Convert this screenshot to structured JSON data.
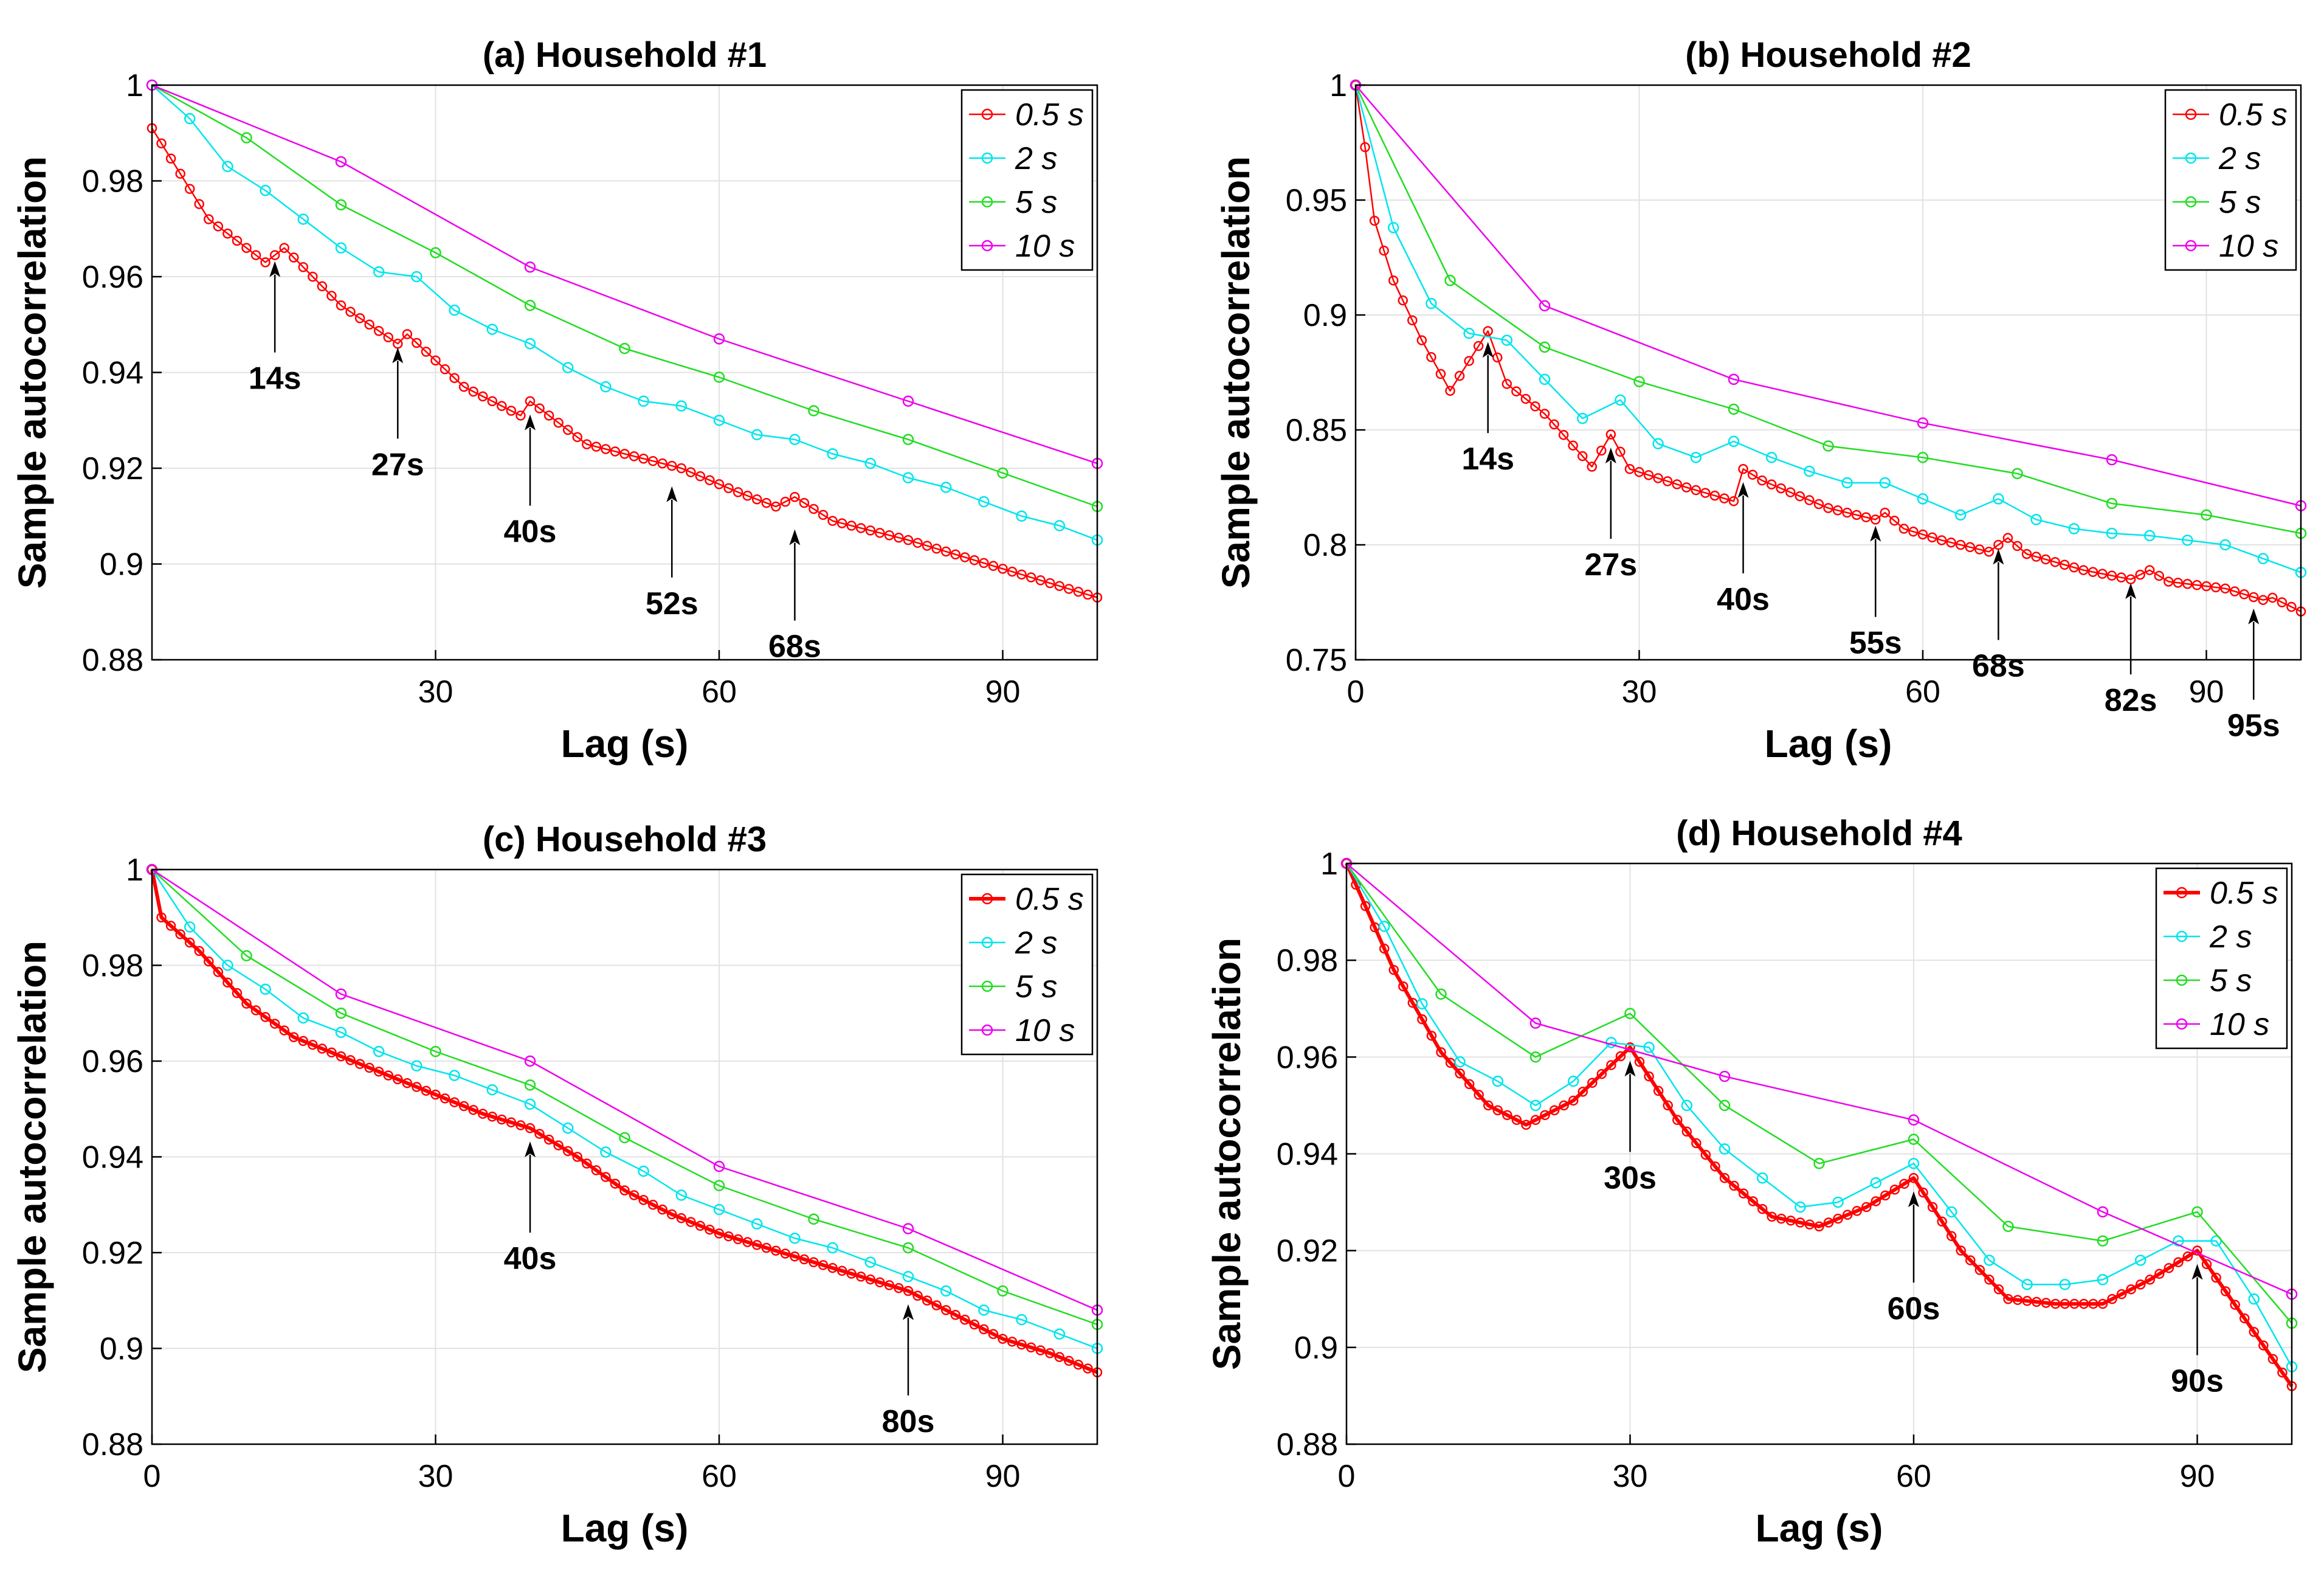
{
  "chart_data": [
    {
      "type": "line",
      "title": "(a) Household #1",
      "xlabel": "Lag (s)",
      "ylabel": "Sample autocorrelation",
      "xlim": [
        0,
        100
      ],
      "ylim": [
        0.88,
        1
      ],
      "xticks": [
        30,
        60,
        90
      ],
      "xtick_labels": [
        "30",
        "60",
        "90"
      ],
      "yticks": [
        0.88,
        0.9,
        0.92,
        0.94,
        0.96,
        0.98,
        1
      ],
      "ytick_labels": [
        "0.88",
        "0.9",
        "0.92",
        "0.94",
        "0.96",
        "0.98",
        "1"
      ],
      "grid": true,
      "legend_position": "top-right",
      "series": [
        {
          "name": "0.5 s",
          "color": "#ff0000",
          "thick": false,
          "step": 1,
          "key_x": [
            0,
            6,
            12,
            14,
            20,
            26,
            27,
            33,
            39,
            40,
            46,
            52,
            56,
            62,
            66,
            68,
            72,
            80,
            90,
            100
          ],
          "key_y": [
            0.991,
            0.972,
            0.963,
            0.966,
            0.954,
            0.946,
            0.948,
            0.937,
            0.931,
            0.934,
            0.925,
            0.922,
            0.92,
            0.915,
            0.912,
            0.914,
            0.909,
            0.905,
            0.899,
            0.893
          ]
        },
        {
          "name": "2 s",
          "color": "#00e5ee",
          "thick": false,
          "step": 4,
          "key_x": [
            0,
            4,
            8,
            12,
            16,
            20,
            24,
            28,
            32,
            36,
            40,
            44,
            48,
            52,
            56,
            60,
            64,
            68,
            72,
            76,
            80,
            84,
            88,
            92,
            96,
            100
          ],
          "key_y": [
            1,
            0.993,
            0.983,
            0.978,
            0.972,
            0.966,
            0.961,
            0.96,
            0.953,
            0.949,
            0.946,
            0.941,
            0.937,
            0.934,
            0.933,
            0.93,
            0.927,
            0.926,
            0.923,
            0.921,
            0.918,
            0.916,
            0.913,
            0.91,
            0.908,
            0.905
          ]
        },
        {
          "name": "5 s",
          "color": "#22dd22",
          "thick": false,
          "step": 10,
          "key_x": [
            0,
            10,
            20,
            30,
            40,
            50,
            60,
            70,
            80,
            90,
            100
          ],
          "key_y": [
            1,
            0.989,
            0.975,
            0.965,
            0.954,
            0.945,
            0.939,
            0.932,
            0.926,
            0.919,
            0.912
          ]
        },
        {
          "name": "10 s",
          "color": "#ee00ee",
          "thick": false,
          "step": 20,
          "key_x": [
            0,
            20,
            40,
            60,
            80,
            100
          ],
          "key_y": [
            1,
            0.984,
            0.962,
            0.947,
            0.934,
            0.921
          ]
        }
      ],
      "annotations": [
        {
          "label": "14s",
          "x": 13,
          "y": 0.965
        },
        {
          "label": "27s",
          "x": 26,
          "y": 0.947
        },
        {
          "label": "40s",
          "x": 40,
          "y": 0.933
        },
        {
          "label": "52s",
          "x": 55,
          "y": 0.918
        },
        {
          "label": "68s",
          "x": 68,
          "y": 0.909
        }
      ]
    },
    {
      "type": "line",
      "title": "(b) Household #2",
      "xlabel": "Lag (s)",
      "ylabel": "Sample autocorrelation",
      "xlim": [
        0,
        100
      ],
      "ylim": [
        0.75,
        1
      ],
      "xticks": [
        0,
        30,
        60,
        90
      ],
      "xtick_labels": [
        "0",
        "30",
        "60",
        "90"
      ],
      "yticks": [
        0.75,
        0.8,
        0.85,
        0.9,
        0.95,
        1
      ],
      "ytick_labels": [
        "0.75",
        "0.8",
        "0.85",
        "0.9",
        "0.95",
        "1"
      ],
      "grid": true,
      "legend_position": "top-right",
      "series": [
        {
          "name": "0.5 s",
          "color": "#ff0000",
          "thick": false,
          "step": 1,
          "key_x": [
            0,
            1,
            2,
            4,
            7,
            10,
            12,
            14,
            16,
            20,
            25,
            27,
            29,
            35,
            40,
            41,
            43,
            50,
            55,
            56,
            58,
            62,
            67,
            69,
            71,
            77,
            82,
            84,
            86,
            92,
            96,
            97,
            100
          ],
          "key_y": [
            1,
            0.973,
            0.941,
            0.915,
            0.889,
            0.867,
            0.88,
            0.893,
            0.87,
            0.857,
            0.834,
            0.848,
            0.833,
            0.825,
            0.819,
            0.833,
            0.828,
            0.816,
            0.811,
            0.814,
            0.807,
            0.802,
            0.797,
            0.803,
            0.796,
            0.789,
            0.785,
            0.789,
            0.784,
            0.781,
            0.776,
            0.777,
            0.771
          ]
        },
        {
          "name": "2 s",
          "color": "#00e5ee",
          "thick": false,
          "step": 4,
          "key_x": [
            0,
            4,
            8,
            12,
            16,
            20,
            24,
            28,
            32,
            36,
            40,
            44,
            48,
            52,
            56,
            60,
            64,
            68,
            72,
            76,
            80,
            84,
            88,
            92,
            96,
            100
          ],
          "key_y": [
            1,
            0.938,
            0.905,
            0.892,
            0.889,
            0.872,
            0.855,
            0.863,
            0.844,
            0.838,
            0.845,
            0.838,
            0.832,
            0.827,
            0.827,
            0.82,
            0.813,
            0.82,
            0.811,
            0.807,
            0.805,
            0.804,
            0.802,
            0.8,
            0.794,
            0.788
          ]
        },
        {
          "name": "5 s",
          "color": "#22dd22",
          "thick": false,
          "step": 10,
          "key_x": [
            0,
            10,
            20,
            30,
            40,
            50,
            60,
            70,
            80,
            90,
            100
          ],
          "key_y": [
            1,
            0.915,
            0.886,
            0.871,
            0.859,
            0.843,
            0.838,
            0.831,
            0.818,
            0.813,
            0.805
          ]
        },
        {
          "name": "10 s",
          "color": "#ee00ee",
          "thick": false,
          "step": 20,
          "key_x": [
            0,
            20,
            40,
            60,
            80,
            100
          ],
          "key_y": [
            1,
            0.904,
            0.872,
            0.853,
            0.837,
            0.817
          ]
        }
      ],
      "annotations": [
        {
          "label": "14s",
          "x": 14,
          "y": 0.892
        },
        {
          "label": "27s",
          "x": 27,
          "y": 0.846
        },
        {
          "label": "40s",
          "x": 41,
          "y": 0.831
        },
        {
          "label": "55s",
          "x": 55,
          "y": 0.812
        },
        {
          "label": "68s",
          "x": 68,
          "y": 0.802
        },
        {
          "label": "82s",
          "x": 82,
          "y": 0.787
        },
        {
          "label": "95s",
          "x": 95,
          "y": 0.776
        }
      ]
    },
    {
      "type": "line",
      "title": "(c) Household #3",
      "xlabel": "Lag (s)",
      "ylabel": "Sample autocorrelation",
      "xlim": [
        0,
        100
      ],
      "ylim": [
        0.88,
        1
      ],
      "xticks": [
        0,
        30,
        60,
        90
      ],
      "xtick_labels": [
        "0",
        "30",
        "60",
        "90"
      ],
      "yticks": [
        0.88,
        0.9,
        0.92,
        0.94,
        0.96,
        0.98,
        1
      ],
      "ytick_labels": [
        "0.88",
        "0.9",
        "0.92",
        "0.94",
        "0.96",
        "0.98",
        "1"
      ],
      "grid": true,
      "legend_position": "top-right",
      "series": [
        {
          "name": "0.5 s",
          "color": "#ff0000",
          "thick": true,
          "step": 1,
          "key_x": [
            0,
            1,
            5,
            10,
            15,
            20,
            25,
            30,
            35,
            40,
            45,
            50,
            55,
            60,
            65,
            70,
            75,
            80,
            85,
            90,
            95,
            100
          ],
          "key_y": [
            1,
            0.99,
            0.983,
            0.972,
            0.965,
            0.961,
            0.957,
            0.953,
            0.949,
            0.946,
            0.94,
            0.933,
            0.928,
            0.924,
            0.921,
            0.918,
            0.915,
            0.912,
            0.907,
            0.902,
            0.899,
            0.895
          ]
        },
        {
          "name": "2 s",
          "color": "#00e5ee",
          "thick": false,
          "step": 4,
          "key_x": [
            0,
            4,
            8,
            12,
            16,
            20,
            24,
            28,
            32,
            36,
            40,
            44,
            48,
            52,
            56,
            60,
            64,
            68,
            72,
            76,
            80,
            84,
            88,
            92,
            96,
            100
          ],
          "key_y": [
            1,
            0.988,
            0.98,
            0.975,
            0.969,
            0.966,
            0.962,
            0.959,
            0.957,
            0.954,
            0.951,
            0.946,
            0.941,
            0.937,
            0.932,
            0.929,
            0.926,
            0.923,
            0.921,
            0.918,
            0.915,
            0.912,
            0.908,
            0.906,
            0.903,
            0.9
          ]
        },
        {
          "name": "5 s",
          "color": "#22dd22",
          "thick": false,
          "step": 10,
          "key_x": [
            0,
            10,
            20,
            30,
            40,
            50,
            60,
            70,
            80,
            90,
            100
          ],
          "key_y": [
            1,
            0.982,
            0.97,
            0.962,
            0.955,
            0.944,
            0.934,
            0.927,
            0.921,
            0.912,
            0.905
          ]
        },
        {
          "name": "10 s",
          "color": "#ee00ee",
          "thick": false,
          "step": 20,
          "key_x": [
            0,
            20,
            40,
            60,
            80,
            100
          ],
          "key_y": [
            1,
            0.974,
            0.96,
            0.938,
            0.925,
            0.908
          ]
        }
      ],
      "annotations": [
        {
          "label": "40s",
          "x": 40,
          "y": 0.945
        },
        {
          "label": "80s",
          "x": 80,
          "y": 0.911
        }
      ]
    },
    {
      "type": "line",
      "title": "(d) Household #4",
      "xlabel": "Lag (s)",
      "ylabel": "Sample autocorrelation",
      "xlim": [
        0,
        100
      ],
      "ylim": [
        0.88,
        1
      ],
      "xticks": [
        0,
        30,
        60,
        90
      ],
      "xtick_labels": [
        "0",
        "30",
        "60",
        "90"
      ],
      "yticks": [
        0.88,
        0.9,
        0.92,
        0.94,
        0.96,
        0.98,
        1
      ],
      "ytick_labels": [
        "0.88",
        "0.9",
        "0.92",
        "0.94",
        "0.96",
        "0.98",
        "1"
      ],
      "grid": true,
      "legend_position": "top-right",
      "series": [
        {
          "name": "0.5 s",
          "color": "#ff0000",
          "thick": true,
          "step": 1,
          "key_x": [
            0,
            5,
            10,
            15,
            19,
            24,
            30,
            35,
            40,
            45,
            50,
            55,
            60,
            65,
            70,
            75,
            80,
            85,
            90,
            95,
            100
          ],
          "key_y": [
            1,
            0.978,
            0.961,
            0.95,
            0.946,
            0.951,
            0.962,
            0.947,
            0.935,
            0.927,
            0.925,
            0.929,
            0.935,
            0.92,
            0.91,
            0.909,
            0.909,
            0.914,
            0.92,
            0.906,
            0.892
          ]
        },
        {
          "name": "2 s",
          "color": "#00e5ee",
          "thick": false,
          "step": 4,
          "key_x": [
            0,
            4,
            8,
            12,
            16,
            20,
            24,
            28,
            32,
            36,
            40,
            44,
            48,
            52,
            56,
            60,
            64,
            68,
            72,
            76,
            80,
            84,
            88,
            92,
            96,
            100
          ],
          "key_y": [
            1,
            0.987,
            0.971,
            0.959,
            0.955,
            0.95,
            0.955,
            0.963,
            0.962,
            0.95,
            0.941,
            0.935,
            0.929,
            0.93,
            0.934,
            0.938,
            0.928,
            0.918,
            0.913,
            0.913,
            0.914,
            0.918,
            0.922,
            0.922,
            0.91,
            0.896
          ]
        },
        {
          "name": "5 s",
          "color": "#22dd22",
          "thick": false,
          "step": 10,
          "key_x": [
            0,
            10,
            20,
            30,
            40,
            50,
            60,
            70,
            80,
            90,
            100
          ],
          "key_y": [
            1,
            0.973,
            0.96,
            0.969,
            0.95,
            0.938,
            0.943,
            0.925,
            0.922,
            0.928,
            0.905
          ]
        },
        {
          "name": "10 s",
          "color": "#ee00ee",
          "thick": false,
          "step": 20,
          "key_x": [
            0,
            20,
            40,
            60,
            80,
            100
          ],
          "key_y": [
            1,
            0.967,
            0.956,
            0.947,
            0.928,
            0.911
          ]
        }
      ],
      "annotations": [
        {
          "label": "30s",
          "x": 30,
          "y": 0.961
        },
        {
          "label": "60s",
          "x": 60,
          "y": 0.934
        },
        {
          "label": "90s",
          "x": 90,
          "y": 0.919
        }
      ]
    }
  ]
}
